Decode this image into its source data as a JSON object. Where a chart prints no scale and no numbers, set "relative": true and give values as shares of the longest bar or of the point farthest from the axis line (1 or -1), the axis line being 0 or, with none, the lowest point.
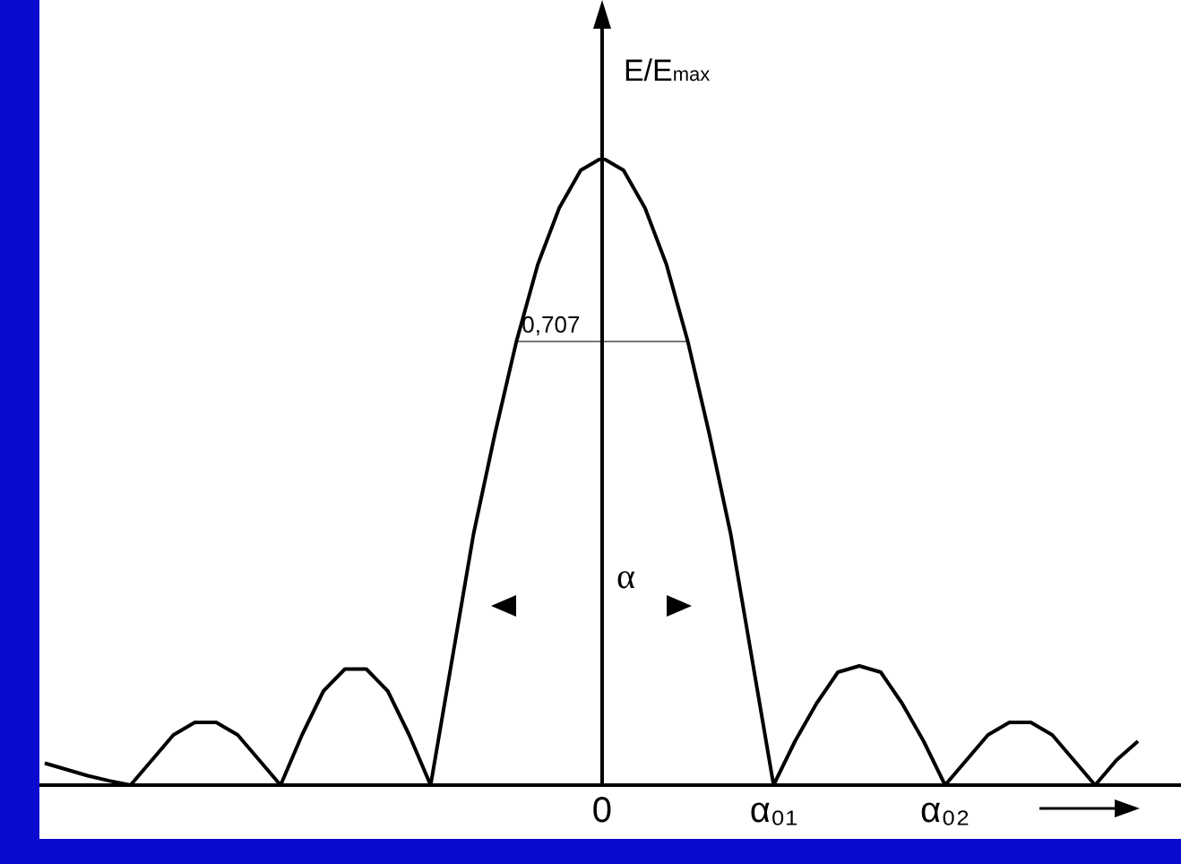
{
  "chart_data": {
    "type": "line",
    "relative": true,
    "ylabel": "E/E$_{max}$",
    "categories": [
      null,
      null,
      null,
      null,
      null,
      null,
      null,
      null,
      null,
      null,
      null,
      null,
      null,
      null,
      null,
      null,
      null,
      null,
      null,
      null,
      null,
      null,
      null,
      null,
      null,
      null,
      "0",
      null,
      null,
      null,
      null,
      null,
      null,
      null,
      "α₀₁",
      null,
      null,
      null,
      null,
      null,
      null,
      null,
      "α₀₂",
      null,
      null,
      null,
      null,
      null,
      null,
      null,
      null,
      null
    ],
    "grid": false,
    "legend": false,
    "marker": "none",
    "line_style": "solid",
    "tick_labels": "x",
    "series": [
      {
        "color": "#000000",
        "values": [
          0.035,
          0.025,
          0.015,
          0.007,
          0,
          0.04,
          0.08,
          0.1,
          0.1,
          0.08,
          0.04,
          0,
          0.08,
          0.15,
          0.185,
          0.185,
          0.15,
          0.08,
          0,
          0.2,
          0.4,
          0.56,
          0.707,
          0.83,
          0.92,
          0.98,
          1,
          0.98,
          0.92,
          0.83,
          0.707,
          0.56,
          0.4,
          0.2,
          0,
          0.07,
          0.13,
          0.18,
          0.19,
          0.18,
          0.13,
          0.07,
          0,
          0.04,
          0.08,
          0.1,
          0.1,
          0.08,
          0.04,
          0,
          0.04,
          0.07
        ]
      },
      {
        "type": "line",
        "color": "#777777",
        "values": [
          null,
          null,
          null,
          null,
          null,
          null,
          null,
          null,
          null,
          null,
          null,
          null,
          null,
          null,
          null,
          null,
          null,
          null,
          null,
          null,
          null,
          null,
          0.707,
          null,
          null,
          null,
          null,
          null,
          null,
          null,
          0.707,
          null,
          null,
          null,
          null,
          null,
          null,
          null,
          null,
          null,
          null,
          null,
          null,
          null,
          null,
          null,
          null,
          null,
          null,
          null,
          null,
          null
        ]
      }
    ],
    "annotations": [
      "0,707",
      "α"
    ]
  }
}
